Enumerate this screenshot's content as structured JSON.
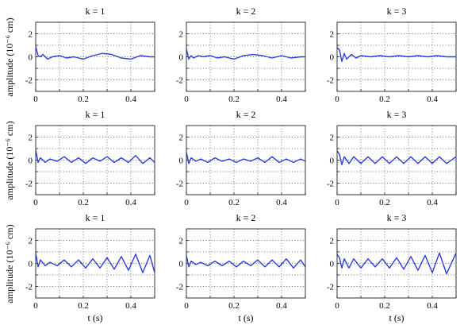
{
  "figure": {
    "ylabel": "amplitude (10⁻⁶ cm)",
    "xlabel": "t (s)"
  },
  "chart_data": [
    {
      "type": "line",
      "title": "k = 1",
      "row": 0,
      "col": 0,
      "xlim": [
        0,
        0.5
      ],
      "ylim": [
        -3,
        3
      ],
      "xticks": [
        "0",
        "0.2",
        "0.4"
      ],
      "yticks": [
        "-2",
        "0",
        "2"
      ],
      "grid": true,
      "color": "#2b3fd6",
      "x": [
        0,
        0.01,
        0.02,
        0.03,
        0.05,
        0.07,
        0.1,
        0.13,
        0.16,
        0.2,
        0.24,
        0.28,
        0.32,
        0.36,
        0.4,
        0.44,
        0.48,
        0.5
      ],
      "values": [
        0.9,
        0.1,
        0.0,
        0.2,
        -0.2,
        0.0,
        0.1,
        -0.1,
        0.0,
        -0.2,
        0.1,
        0.3,
        0.2,
        -0.1,
        -0.2,
        0.1,
        0.0,
        0.0
      ]
    },
    {
      "type": "line",
      "title": "k = 2",
      "row": 0,
      "col": 1,
      "xlim": [
        0,
        0.5
      ],
      "ylim": [
        -3,
        3
      ],
      "xticks": [
        "0",
        "0.2",
        "0.4"
      ],
      "yticks": [
        "-2",
        "0",
        "2"
      ],
      "grid": true,
      "color": "#2b3fd6",
      "x": [
        0,
        0.01,
        0.02,
        0.03,
        0.05,
        0.07,
        0.1,
        0.13,
        0.16,
        0.2,
        0.24,
        0.28,
        0.32,
        0.36,
        0.4,
        0.44,
        0.48,
        0.5
      ],
      "values": [
        0.7,
        -0.2,
        0.1,
        -0.1,
        0.1,
        0.0,
        0.1,
        -0.1,
        0.0,
        -0.2,
        0.1,
        0.2,
        0.1,
        -0.1,
        0.1,
        -0.1,
        0.0,
        0.0
      ]
    },
    {
      "type": "line",
      "title": "k = 3",
      "row": 0,
      "col": 2,
      "xlim": [
        0,
        0.5
      ],
      "ylim": [
        -3,
        3
      ],
      "xticks": [
        "0",
        "0.2",
        "0.4"
      ],
      "yticks": [
        "-2",
        "0",
        "2"
      ],
      "grid": true,
      "color": "#2b3fd6",
      "x": [
        0,
        0.01,
        0.02,
        0.03,
        0.04,
        0.06,
        0.08,
        0.1,
        0.14,
        0.18,
        0.22,
        0.26,
        0.3,
        0.34,
        0.38,
        0.42,
        0.46,
        0.5
      ],
      "values": [
        0.8,
        0.6,
        -0.4,
        0.3,
        -0.2,
        0.2,
        -0.1,
        0.1,
        0.0,
        0.1,
        0.0,
        0.1,
        0.0,
        0.1,
        0.0,
        0.1,
        0.0,
        0.0
      ]
    },
    {
      "type": "line",
      "title": "k = 1",
      "row": 1,
      "col": 0,
      "xlim": [
        0,
        0.5
      ],
      "ylim": [
        -3,
        3
      ],
      "xticks": [
        "0",
        "0.2",
        "0.4"
      ],
      "yticks": [
        "-2",
        "0",
        "2"
      ],
      "grid": true,
      "color": "#2b3fd6",
      "x": [
        0,
        0.01,
        0.02,
        0.04,
        0.06,
        0.09,
        0.12,
        0.15,
        0.18,
        0.21,
        0.24,
        0.27,
        0.3,
        0.33,
        0.36,
        0.39,
        0.42,
        0.45,
        0.48,
        0.5
      ],
      "values": [
        0.9,
        -0.2,
        0.2,
        -0.2,
        0.1,
        -0.1,
        0.3,
        -0.2,
        0.2,
        -0.3,
        0.2,
        -0.1,
        0.3,
        -0.2,
        0.2,
        -0.2,
        0.4,
        -0.3,
        0.2,
        -0.2
      ]
    },
    {
      "type": "line",
      "title": "k = 2",
      "row": 1,
      "col": 1,
      "xlim": [
        0,
        0.5
      ],
      "ylim": [
        -3,
        3
      ],
      "xticks": [
        "0",
        "0.2",
        "0.4"
      ],
      "yticks": [
        "-2",
        "0",
        "2"
      ],
      "grid": true,
      "color": "#2b3fd6",
      "x": [
        0,
        0.01,
        0.02,
        0.04,
        0.06,
        0.09,
        0.12,
        0.15,
        0.18,
        0.21,
        0.24,
        0.27,
        0.3,
        0.33,
        0.36,
        0.39,
        0.42,
        0.45,
        0.48,
        0.5
      ],
      "values": [
        0.7,
        -0.3,
        0.2,
        -0.1,
        0.1,
        -0.2,
        0.2,
        -0.1,
        0.1,
        -0.2,
        0.1,
        -0.1,
        0.2,
        -0.2,
        0.3,
        -0.2,
        0.1,
        -0.2,
        0.1,
        -0.1
      ]
    },
    {
      "type": "line",
      "title": "k = 3",
      "row": 1,
      "col": 2,
      "xlim": [
        0,
        0.5
      ],
      "ylim": [
        -3,
        3
      ],
      "xticks": [
        "0",
        "0.2",
        "0.4"
      ],
      "yticks": [
        "-2",
        "0",
        "2"
      ],
      "grid": true,
      "color": "#2b3fd6",
      "x": [
        0,
        0.01,
        0.02,
        0.03,
        0.05,
        0.07,
        0.1,
        0.13,
        0.16,
        0.19,
        0.22,
        0.25,
        0.28,
        0.31,
        0.34,
        0.37,
        0.4,
        0.43,
        0.46,
        0.5
      ],
      "values": [
        0.8,
        0.5,
        -0.4,
        0.3,
        -0.3,
        0.3,
        -0.3,
        0.3,
        -0.3,
        0.3,
        -0.3,
        0.3,
        -0.3,
        0.3,
        -0.3,
        0.3,
        -0.3,
        0.3,
        -0.3,
        0.3
      ]
    },
    {
      "type": "line",
      "title": "k = 1",
      "row": 2,
      "col": 0,
      "xlim": [
        0,
        0.5
      ],
      "ylim": [
        -3,
        3
      ],
      "xticks": [
        "0",
        "0.2",
        "0.4"
      ],
      "yticks": [
        "-2",
        "0",
        "2"
      ],
      "grid": true,
      "color": "#2b3fd6",
      "x": [
        0,
        0.01,
        0.02,
        0.04,
        0.06,
        0.09,
        0.12,
        0.15,
        0.18,
        0.21,
        0.24,
        0.27,
        0.3,
        0.33,
        0.36,
        0.39,
        0.42,
        0.45,
        0.48,
        0.5
      ],
      "values": [
        0.9,
        -0.3,
        0.3,
        -0.2,
        0.1,
        -0.2,
        0.3,
        -0.3,
        0.3,
        -0.4,
        0.4,
        -0.4,
        0.5,
        -0.5,
        0.6,
        -0.6,
        0.8,
        -0.8,
        0.7,
        -0.8
      ]
    },
    {
      "type": "line",
      "title": "k = 2",
      "row": 2,
      "col": 1,
      "xlim": [
        0,
        0.5
      ],
      "ylim": [
        -3,
        3
      ],
      "xticks": [
        "0",
        "0.2",
        "0.4"
      ],
      "yticks": [
        "-2",
        "0",
        "2"
      ],
      "grid": true,
      "color": "#2b3fd6",
      "x": [
        0,
        0.01,
        0.02,
        0.04,
        0.06,
        0.09,
        0.12,
        0.15,
        0.18,
        0.21,
        0.24,
        0.27,
        0.3,
        0.33,
        0.36,
        0.39,
        0.42,
        0.45,
        0.48,
        0.5
      ],
      "values": [
        0.7,
        -0.3,
        0.2,
        -0.1,
        0.1,
        -0.2,
        0.2,
        -0.2,
        0.2,
        -0.3,
        0.2,
        -0.2,
        0.3,
        -0.3,
        0.3,
        -0.3,
        0.4,
        -0.4,
        0.3,
        -0.3
      ]
    },
    {
      "type": "line",
      "title": "k = 3",
      "row": 2,
      "col": 2,
      "xlim": [
        0,
        0.5
      ],
      "ylim": [
        -3,
        3
      ],
      "xticks": [
        "0",
        "0.2",
        "0.4"
      ],
      "yticks": [
        "-2",
        "0",
        "2"
      ],
      "grid": true,
      "color": "#2b3fd6",
      "x": [
        0,
        0.01,
        0.02,
        0.03,
        0.05,
        0.07,
        0.1,
        0.13,
        0.16,
        0.19,
        0.22,
        0.25,
        0.28,
        0.31,
        0.34,
        0.37,
        0.4,
        0.43,
        0.46,
        0.5
      ],
      "values": [
        0.8,
        0.5,
        -0.4,
        0.4,
        -0.4,
        0.4,
        -0.4,
        0.4,
        -0.3,
        0.4,
        -0.4,
        0.5,
        -0.5,
        0.6,
        -0.6,
        0.7,
        -0.8,
        0.9,
        -0.9,
        0.9
      ]
    }
  ]
}
